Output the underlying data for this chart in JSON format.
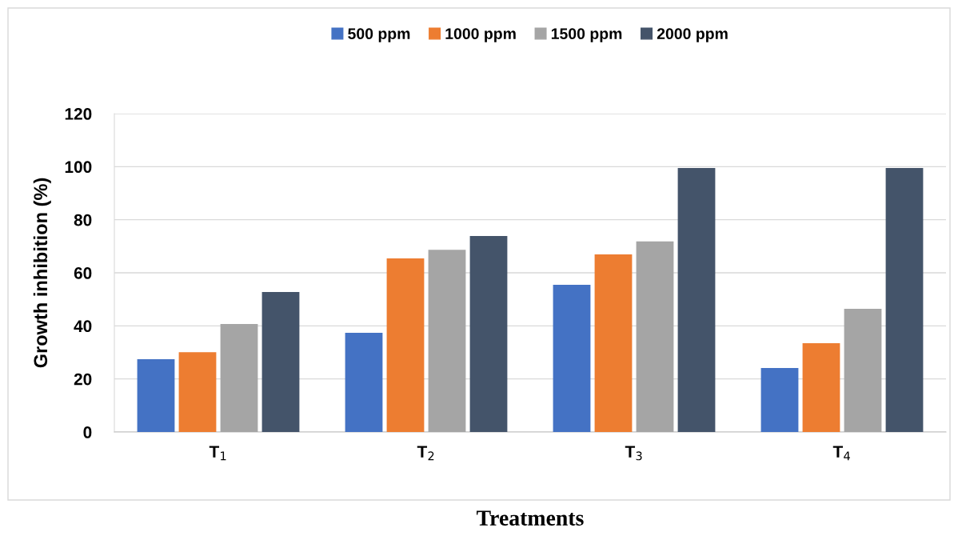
{
  "chart_data": {
    "type": "bar",
    "xlabel": "Treatments",
    "ylabel": "Growth inhibition (%)",
    "categories": [
      "T$_{1}$",
      "T$_{2}$",
      "T$_{3}$",
      "T$_{4}$"
    ],
    "series": [
      {
        "name": "500 ppm",
        "color": "#4472c4",
        "values": [
          27.4,
          37.4,
          55.5,
          24.1
        ]
      },
      {
        "name": "1000 ppm",
        "color": "#ed7d31",
        "values": [
          30.1,
          65.4,
          66.9,
          33.5
        ]
      },
      {
        "name": "1500 ppm",
        "color": "#a5a5a5",
        "values": [
          40.7,
          68.7,
          71.8,
          46.4
        ]
      },
      {
        "name": "2000 ppm",
        "color": "#44546a",
        "values": [
          52.8,
          73.9,
          99.5,
          99.5
        ]
      }
    ],
    "ylim": [
      0,
      120
    ],
    "yticks": [
      0,
      20,
      40,
      60,
      80,
      100,
      120
    ],
    "grid": "y",
    "legend": "top"
  }
}
